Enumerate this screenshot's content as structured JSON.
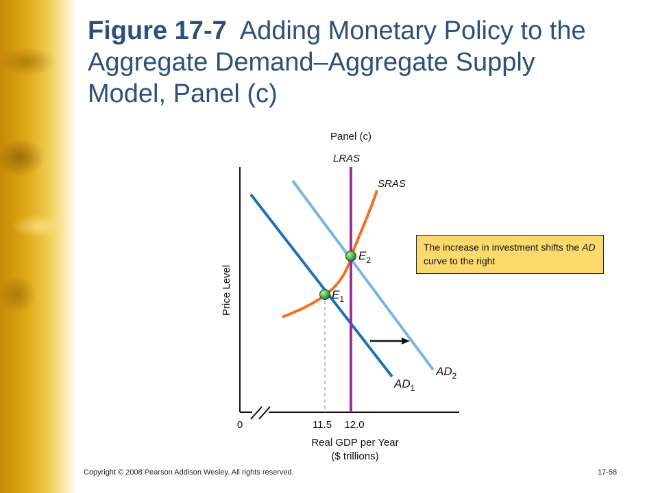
{
  "slide": {
    "title_bold": "Figure 17-7",
    "title_rest": "Adding Monetary Policy to the Aggregate Demand–Aggregate Supply Model, Panel (c)",
    "footer": "Copyright © 2008 Pearson Addison Wesley. All rights reserved.",
    "page_number": "17-58"
  },
  "diagram": {
    "panel_label": "Panel (c)",
    "lras_label": "LRAS",
    "sras_label": "SRAS",
    "ad1_label": "AD",
    "ad1_sub": "1",
    "ad2_label": "AD",
    "ad2_sub": "2",
    "e1_label": "E",
    "e1_sub": "1",
    "e2_label": "E",
    "e2_sub": "2",
    "y_axis_label": "Price Level",
    "x_axis_label_line1": "Real GDP per Year",
    "x_axis_label_line2": "($ trillions)",
    "origin_label": "0",
    "x_tick_1": "11.5",
    "x_tick_2": "12.0",
    "callout_text": "The increase in investment shifts the",
    "callout_em": "AD",
    "callout_text_end": "curve to the right",
    "colors": {
      "lras": "#9b2fa0",
      "sras": "#f07020",
      "ad1": "#1c6fb8",
      "ad2": "#78b4e4",
      "callout_bg": "#fbd96b",
      "title": "#2c4f7c"
    }
  }
}
